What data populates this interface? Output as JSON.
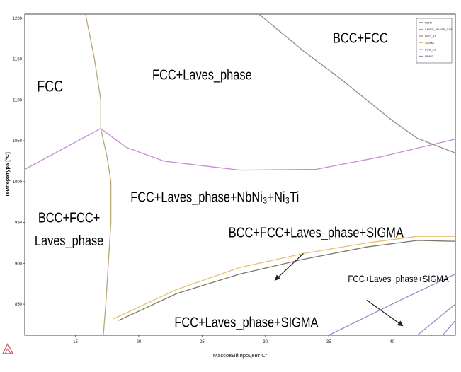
{
  "chart_data": {
    "type": "line",
    "title": "",
    "xlabel": "Массовый процент Cr",
    "ylabel": "Температура [°C]",
    "xlim": [
      11,
      45
    ],
    "ylim": [
      812,
      1205
    ],
    "x_ticks": [
      15,
      20,
      25,
      30,
      35,
      40
    ],
    "y_ticks": [
      850,
      900,
      950,
      1000,
      1050,
      1100,
      1150,
      1200
    ],
    "grid": false,
    "legend_position": "top-right",
    "legend": [
      "NI3TI",
      "LAVES_PHASE_C14",
      "BCC_A2",
      "SIGMA",
      "FCC_A1",
      "NBNI3"
    ],
    "series": [
      {
        "name": "FCC_A1",
        "color": "#c78ad6",
        "points": [
          [
            11,
            1015
          ],
          [
            14,
            1040
          ],
          [
            17,
            1065
          ],
          [
            19,
            1042
          ],
          [
            22,
            1025
          ],
          [
            28,
            1014
          ],
          [
            34,
            1015
          ],
          [
            39,
            1030
          ],
          [
            45,
            1052
          ]
        ]
      },
      {
        "name": "LAVES_PHASE_C14",
        "color": "#b8a878",
        "points": [
          [
            15.8,
            1205
          ],
          [
            16.5,
            1150
          ],
          [
            17,
            1100
          ],
          [
            17,
            1065
          ]
        ]
      },
      {
        "name": "LAVES_PHASE_C14",
        "color": "#b8a878",
        "points": [
          [
            17,
            1065
          ],
          [
            17.5,
            1030
          ],
          [
            17.8,
            1000
          ],
          [
            17.8,
            950
          ],
          [
            17.6,
            900
          ],
          [
            17.4,
            850
          ],
          [
            17.2,
            812
          ]
        ]
      },
      {
        "name": "BCC_A2",
        "color": "#9a8a80",
        "points": [
          [
            29.5,
            1205
          ],
          [
            33,
            1160
          ],
          [
            36,
            1125
          ],
          [
            38,
            1100
          ],
          [
            40,
            1075
          ],
          [
            42,
            1053
          ],
          [
            45,
            1035
          ]
        ]
      },
      {
        "name": "SIGMA",
        "color": "#e8c070",
        "points": [
          [
            18,
            832
          ],
          [
            23,
            868
          ],
          [
            28,
            895
          ],
          [
            33,
            912
          ],
          [
            38,
            925
          ],
          [
            42,
            933
          ],
          [
            45,
            933
          ]
        ]
      },
      {
        "name": "NI3TI",
        "color": "#7a7a6a",
        "points": [
          [
            18.4,
            830
          ],
          [
            23,
            863
          ],
          [
            28,
            887
          ],
          [
            33,
            905
          ],
          [
            38,
            920
          ],
          [
            42,
            928
          ],
          [
            45,
            927
          ]
        ]
      },
      {
        "name": "NBNI3",
        "color": "#9a8cc8",
        "points": [
          [
            35,
            812
          ],
          [
            40,
            850
          ],
          [
            45,
            887
          ]
        ]
      },
      {
        "name": "NBNI3",
        "color": "#9a8cc8",
        "points": [
          [
            42,
            812
          ],
          [
            45,
            850
          ]
        ]
      },
      {
        "name": "NBNI3",
        "color": "#9a8cc8",
        "points": [
          [
            44,
            812
          ],
          [
            45,
            830
          ]
        ]
      }
    ],
    "annotations": [
      {
        "text": "FCC",
        "x": 13,
        "y": 1110,
        "size": 22
      },
      {
        "text": "FCC+Laves_phase",
        "x": 25,
        "y": 1125,
        "size": 20
      },
      {
        "text": "BCC+FCC",
        "x": 37.5,
        "y": 1170,
        "size": 20
      },
      {
        "text": "BCC+FCC+",
        "x": 14.5,
        "y": 950,
        "size": 20
      },
      {
        "text": "Laves_phase",
        "x": 14.5,
        "y": 922,
        "size": 20
      },
      {
        "text": "FCC+Laves_phase+NbNi₃+Ni₃Ti",
        "x": 26,
        "y": 975,
        "size": 20
      },
      {
        "text": "BCC+FCC+Laves_phase+SIGMA",
        "x": 34,
        "y": 932,
        "size": 20
      },
      {
        "text": "FCC+Laves_phase+SIGMA",
        "x": 40.5,
        "y": 877,
        "size": 14
      },
      {
        "text": "FCC+Laves_phase+SIGMA",
        "x": 28.5,
        "y": 822,
        "size": 20
      }
    ],
    "arrows": [
      {
        "from": [
          33,
          912
        ],
        "to": [
          30.8,
          880
        ]
      },
      {
        "from": [
          38,
          855
        ],
        "to": [
          40.8,
          824
        ]
      }
    ]
  }
}
